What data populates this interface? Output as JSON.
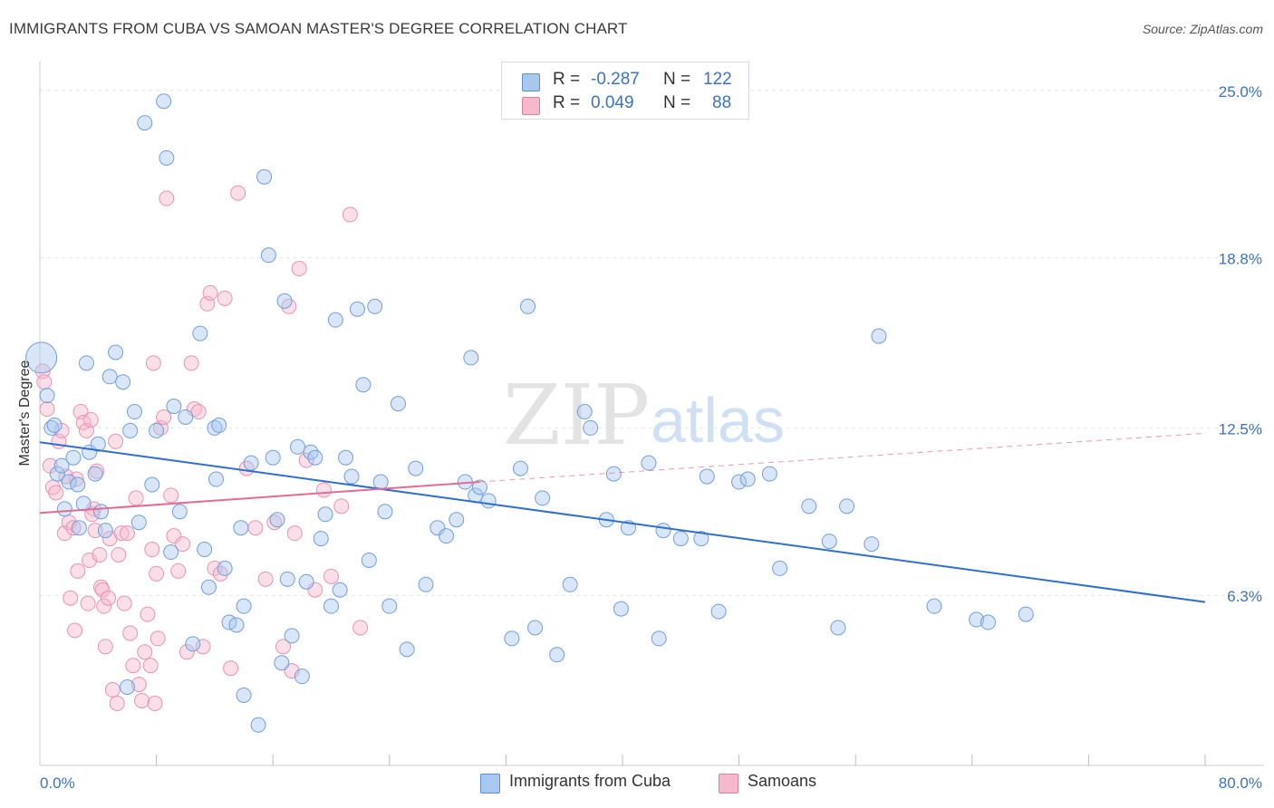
{
  "title": "IMMIGRANTS FROM CUBA VS SAMOAN MASTER'S DEGREE CORRELATION CHART",
  "source": "Source: ZipAtlas.com",
  "watermark": {
    "zip": "ZIP",
    "atlas": "atlas"
  },
  "legend": {
    "r_label": "R =",
    "n_label": "N =",
    "rows": [
      {
        "r": "-0.287",
        "n": "122",
        "color": "#a9c8f0",
        "border": "#5b8fd6"
      },
      {
        "r": "0.049",
        "n": "88",
        "color": "#f6b8cb",
        "border": "#e07ea0"
      }
    ]
  },
  "colors": {
    "blue_line": "#2f6fce",
    "pink_line": "#e36b96",
    "tick_text": "#3b73c4",
    "grid": "#e6e6e6"
  },
  "chart_data": {
    "type": "scatter",
    "title": "IMMIGRANTS FROM CUBA VS SAMOAN MASTER'S DEGREE CORRELATION CHART",
    "xlabel": "",
    "ylabel": "Master's Degree",
    "xlim": [
      0,
      80
    ],
    "ylim": [
      0,
      26
    ],
    "x_tick_labels": [
      "0.0%",
      "80.0%"
    ],
    "y_ticks": [
      6.3,
      12.5,
      18.8,
      25.0
    ],
    "y_tick_labels": [
      "6.3%",
      "12.5%",
      "18.8%",
      "25.0%"
    ],
    "grid": true,
    "series": [
      {
        "name": "Immigrants from Cuba",
        "r": -0.287,
        "n": 122,
        "color": "#a9c8f0",
        "trend": {
          "x": [
            0,
            80
          ],
          "y": [
            11.97,
            6.05
          ],
          "dashed_to": null
        },
        "points": [
          [
            0.1,
            15.1
          ],
          [
            0.5,
            13.7
          ],
          [
            0.8,
            12.5
          ],
          [
            1.2,
            10.8
          ],
          [
            1.5,
            11.1
          ],
          [
            1.7,
            9.5
          ],
          [
            2.0,
            10.5
          ],
          [
            2.3,
            11.4
          ],
          [
            2.6,
            10.4
          ],
          [
            3.0,
            9.7
          ],
          [
            3.4,
            11.6
          ],
          [
            3.8,
            10.8
          ],
          [
            4.2,
            9.4
          ],
          [
            4.5,
            8.7
          ],
          [
            4.8,
            14.4
          ],
          [
            5.2,
            15.3
          ],
          [
            5.7,
            14.2
          ],
          [
            6.2,
            12.4
          ],
          [
            6.5,
            13.1
          ],
          [
            6.8,
            9.0
          ],
          [
            7.2,
            23.8
          ],
          [
            7.7,
            10.4
          ],
          [
            8.0,
            12.4
          ],
          [
            8.5,
            24.6
          ],
          [
            8.7,
            22.5
          ],
          [
            9.0,
            7.9
          ],
          [
            9.6,
            9.4
          ],
          [
            10.0,
            12.9
          ],
          [
            10.5,
            4.5
          ],
          [
            11.0,
            16.0
          ],
          [
            11.3,
            8.0
          ],
          [
            11.6,
            6.6
          ],
          [
            12.0,
            12.5
          ],
          [
            12.3,
            12.6
          ],
          [
            12.7,
            7.3
          ],
          [
            13.0,
            5.3
          ],
          [
            13.5,
            5.2
          ],
          [
            13.8,
            8.8
          ],
          [
            14.0,
            5.9
          ],
          [
            14.5,
            11.2
          ],
          [
            15.0,
            1.5
          ],
          [
            15.4,
            21.8
          ],
          [
            15.7,
            18.9
          ],
          [
            16.0,
            11.4
          ],
          [
            16.3,
            9.1
          ],
          [
            16.6,
            3.8
          ],
          [
            17.0,
            6.9
          ],
          [
            17.3,
            4.8
          ],
          [
            17.7,
            11.8
          ],
          [
            18.0,
            3.3
          ],
          [
            18.3,
            6.8
          ],
          [
            18.6,
            11.6
          ],
          [
            18.9,
            11.4
          ],
          [
            19.3,
            8.4
          ],
          [
            19.6,
            9.3
          ],
          [
            20.0,
            5.9
          ],
          [
            20.3,
            16.5
          ],
          [
            20.6,
            6.5
          ],
          [
            21.0,
            11.4
          ],
          [
            21.4,
            10.7
          ],
          [
            21.8,
            16.9
          ],
          [
            22.2,
            14.1
          ],
          [
            22.6,
            7.6
          ],
          [
            23.0,
            17.0
          ],
          [
            23.4,
            10.5
          ],
          [
            23.7,
            9.4
          ],
          [
            24.0,
            5.9
          ],
          [
            24.6,
            13.4
          ],
          [
            25.2,
            4.3
          ],
          [
            25.8,
            11.0
          ],
          [
            26.5,
            6.7
          ],
          [
            27.3,
            8.8
          ],
          [
            27.9,
            8.5
          ],
          [
            28.6,
            9.1
          ],
          [
            29.2,
            10.5
          ],
          [
            29.6,
            15.1
          ],
          [
            29.9,
            10.0
          ],
          [
            30.2,
            10.3
          ],
          [
            30.8,
            9.8
          ],
          [
            32.4,
            4.7
          ],
          [
            33.0,
            11.0
          ],
          [
            33.5,
            17.0
          ],
          [
            34.0,
            5.1
          ],
          [
            34.5,
            9.9
          ],
          [
            35.5,
            4.1
          ],
          [
            36.4,
            6.7
          ],
          [
            37.4,
            13.1
          ],
          [
            37.8,
            12.5
          ],
          [
            38.9,
            9.1
          ],
          [
            39.4,
            10.8
          ],
          [
            39.9,
            5.8
          ],
          [
            40.4,
            8.8
          ],
          [
            41.8,
            11.2
          ],
          [
            42.5,
            4.7
          ],
          [
            42.8,
            8.7
          ],
          [
            44.0,
            8.4
          ],
          [
            45.4,
            8.4
          ],
          [
            45.8,
            10.7
          ],
          [
            46.6,
            5.7
          ],
          [
            48.0,
            10.5
          ],
          [
            48.6,
            10.6
          ],
          [
            50.1,
            10.8
          ],
          [
            50.8,
            7.3
          ],
          [
            52.8,
            9.6
          ],
          [
            54.2,
            8.3
          ],
          [
            54.8,
            5.1
          ],
          [
            55.4,
            9.6
          ],
          [
            57.1,
            8.2
          ],
          [
            57.6,
            15.9
          ],
          [
            61.4,
            5.9
          ],
          [
            64.3,
            5.4
          ],
          [
            65.1,
            5.3
          ],
          [
            67.7,
            5.6
          ],
          [
            14.0,
            2.6
          ],
          [
            16.8,
            17.2
          ],
          [
            12.1,
            10.6
          ],
          [
            9.2,
            13.3
          ],
          [
            3.2,
            14.9
          ],
          [
            1.0,
            12.6
          ],
          [
            2.7,
            8.8
          ],
          [
            6.0,
            2.9
          ],
          [
            4.0,
            11.9
          ]
        ]
      },
      {
        "name": "Samoans",
        "r": 0.049,
        "n": 88,
        "color": "#f6b8cb",
        "trend": {
          "x": [
            0,
            30.2
          ],
          "y": [
            9.35,
            10.5
          ],
          "dashed_to": [
            80,
            12.3
          ]
        },
        "points": [
          [
            0.2,
            14.6
          ],
          [
            0.3,
            14.2
          ],
          [
            0.5,
            13.2
          ],
          [
            0.7,
            11.1
          ],
          [
            0.9,
            10.3
          ],
          [
            1.1,
            10.1
          ],
          [
            1.3,
            12.0
          ],
          [
            1.5,
            12.4
          ],
          [
            1.7,
            8.6
          ],
          [
            1.8,
            10.7
          ],
          [
            2.0,
            9.0
          ],
          [
            2.1,
            6.2
          ],
          [
            2.3,
            8.8
          ],
          [
            2.5,
            10.6
          ],
          [
            2.6,
            7.2
          ],
          [
            2.8,
            13.1
          ],
          [
            3.0,
            12.7
          ],
          [
            3.2,
            12.4
          ],
          [
            3.3,
            6.0
          ],
          [
            3.4,
            7.6
          ],
          [
            3.5,
            12.8
          ],
          [
            3.7,
            9.5
          ],
          [
            3.8,
            8.7
          ],
          [
            3.9,
            10.9
          ],
          [
            4.1,
            7.8
          ],
          [
            4.2,
            6.6
          ],
          [
            4.3,
            6.5
          ],
          [
            4.4,
            5.9
          ],
          [
            4.5,
            4.4
          ],
          [
            4.7,
            6.2
          ],
          [
            4.8,
            8.4
          ],
          [
            5.0,
            2.8
          ],
          [
            5.2,
            12.0
          ],
          [
            5.4,
            7.8
          ],
          [
            5.6,
            8.6
          ],
          [
            5.8,
            6.0
          ],
          [
            6.0,
            8.6
          ],
          [
            6.2,
            4.9
          ],
          [
            6.4,
            3.7
          ],
          [
            6.6,
            9.9
          ],
          [
            6.8,
            3.0
          ],
          [
            7.0,
            2.4
          ],
          [
            7.2,
            4.2
          ],
          [
            7.4,
            5.6
          ],
          [
            7.6,
            3.7
          ],
          [
            7.7,
            8.0
          ],
          [
            7.8,
            14.9
          ],
          [
            8.0,
            7.1
          ],
          [
            8.1,
            4.7
          ],
          [
            8.3,
            12.5
          ],
          [
            8.5,
            12.9
          ],
          [
            8.7,
            21.0
          ],
          [
            9.0,
            10.0
          ],
          [
            9.2,
            8.5
          ],
          [
            9.5,
            7.2
          ],
          [
            9.8,
            8.2
          ],
          [
            10.1,
            4.2
          ],
          [
            10.4,
            14.9
          ],
          [
            10.6,
            13.2
          ],
          [
            10.9,
            13.1
          ],
          [
            11.2,
            4.4
          ],
          [
            11.5,
            17.1
          ],
          [
            11.7,
            17.5
          ],
          [
            12.0,
            7.3
          ],
          [
            12.4,
            7.1
          ],
          [
            12.7,
            17.3
          ],
          [
            13.1,
            3.6
          ],
          [
            13.6,
            21.2
          ],
          [
            14.2,
            11.0
          ],
          [
            14.8,
            8.8
          ],
          [
            15.5,
            6.9
          ],
          [
            16.1,
            9.0
          ],
          [
            16.7,
            4.4
          ],
          [
            17.1,
            17.0
          ],
          [
            17.3,
            3.5
          ],
          [
            17.5,
            8.6
          ],
          [
            17.8,
            18.4
          ],
          [
            18.3,
            11.3
          ],
          [
            18.9,
            6.5
          ],
          [
            19.5,
            10.2
          ],
          [
            20.0,
            7.0
          ],
          [
            20.7,
            9.6
          ],
          [
            21.3,
            20.4
          ],
          [
            22.0,
            5.1
          ],
          [
            2.4,
            5.0
          ],
          [
            5.3,
            2.3
          ],
          [
            7.9,
            2.3
          ],
          [
            3.6,
            9.3
          ]
        ]
      }
    ]
  },
  "bottom_legend": [
    {
      "label": "Immigrants from Cuba",
      "color": "#a9c8f0",
      "border": "#5b8fd6"
    },
    {
      "label": "Samoans",
      "color": "#f6b8cb",
      "border": "#e07ea0"
    }
  ]
}
